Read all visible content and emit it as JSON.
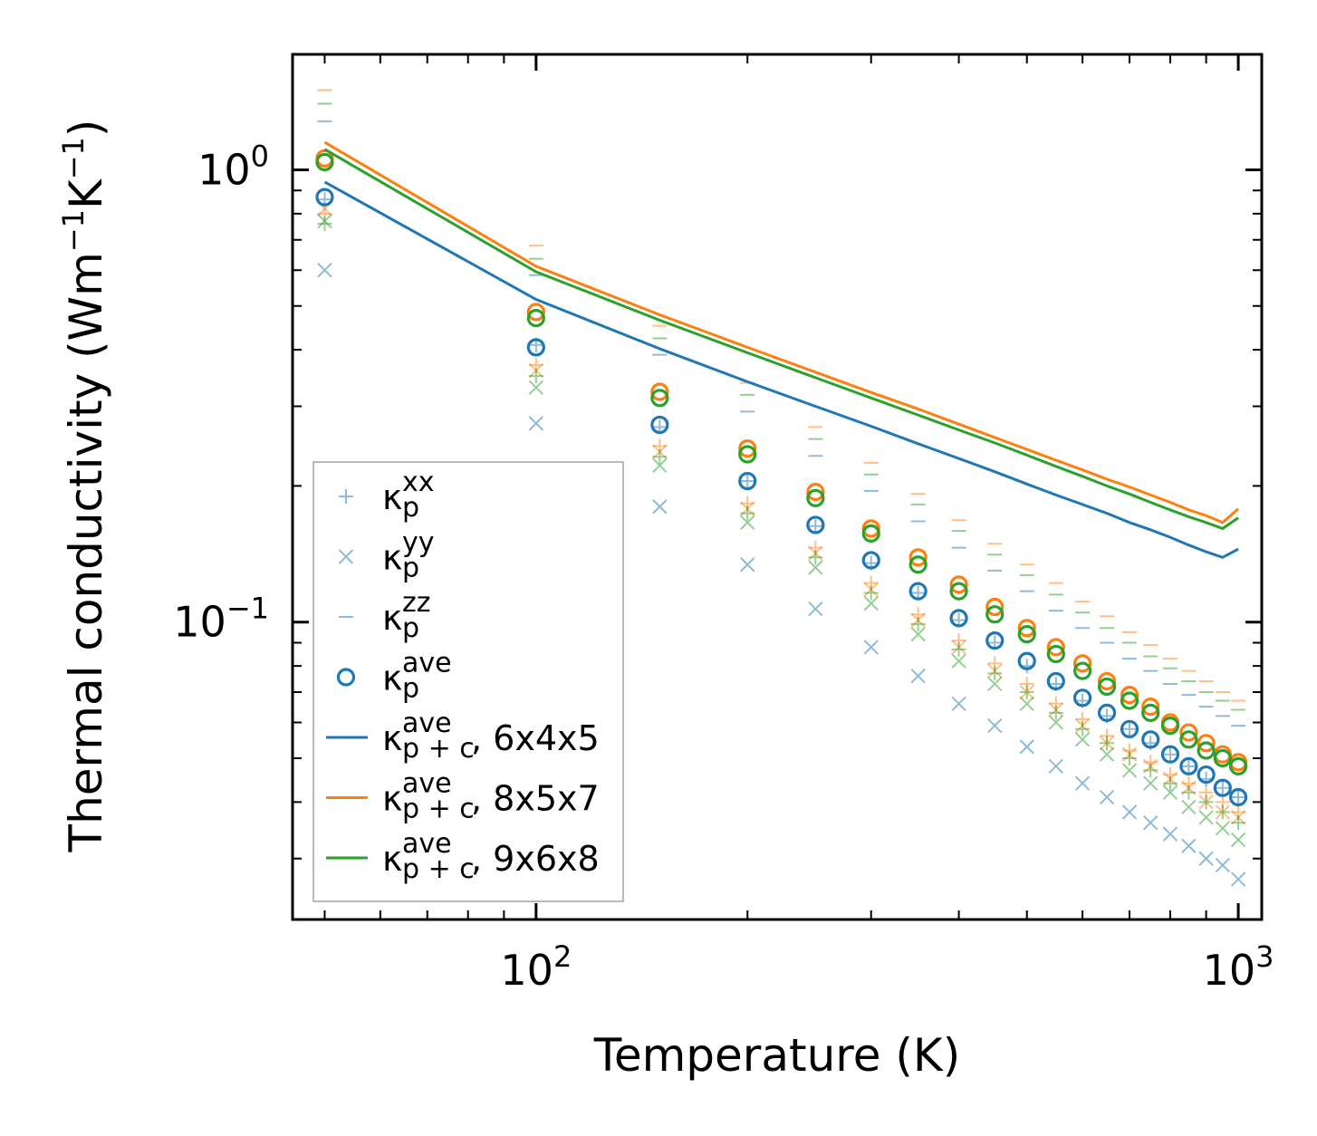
{
  "chart_data": {
    "type": "scatter",
    "xscale": "log",
    "yscale": "log",
    "xlabel": "Temperature (K)",
    "ylabel": {
      "base": "Thermal conductivity (Wm",
      "exp1": "−1",
      "mid": "K",
      "exp2": "−1",
      "end": ")"
    },
    "xlim": [
      45,
      1080
    ],
    "ylim": [
      0.022,
      1.8
    ],
    "xticks": [
      {
        "value": 100,
        "base": "10",
        "exp": "2"
      },
      {
        "value": 1000,
        "base": "10",
        "exp": "3"
      }
    ],
    "yticks": [
      {
        "value": 1,
        "base": "10",
        "exp": "0"
      },
      {
        "value": 0.1,
        "base": "10",
        "exp": "−1"
      }
    ],
    "x": [
      50,
      100,
      150,
      200,
      250,
      300,
      350,
      400,
      450,
      500,
      550,
      600,
      650,
      700,
      750,
      800,
      850,
      900,
      950,
      1000
    ],
    "colors": {
      "blue": "#1f77b4",
      "orange": "#ff7f0e",
      "green": "#2ca02c"
    },
    "markers": {
      "kxx": {
        "blue": [
          0.86,
          0.41,
          0.27,
          0.205,
          0.163,
          0.135,
          0.116,
          0.101,
          0.09,
          0.08,
          0.073,
          0.067,
          0.062,
          0.058,
          0.054,
          0.051,
          0.048,
          0.045,
          0.043,
          0.041
        ],
        "orange": [
          0.8,
          0.37,
          0.245,
          0.183,
          0.146,
          0.122,
          0.104,
          0.091,
          0.081,
          0.073,
          0.066,
          0.061,
          0.056,
          0.052,
          0.049,
          0.046,
          0.044,
          0.042,
          0.04,
          0.038
        ],
        "green": [
          0.76,
          0.35,
          0.232,
          0.174,
          0.139,
          0.116,
          0.099,
          0.087,
          0.077,
          0.07,
          0.063,
          0.058,
          0.054,
          0.05,
          0.047,
          0.044,
          0.042,
          0.04,
          0.038,
          0.036
        ]
      },
      "kyy": {
        "blue": [
          0.6,
          0.275,
          0.18,
          0.134,
          0.107,
          0.088,
          0.076,
          0.066,
          0.059,
          0.053,
          0.048,
          0.044,
          0.041,
          0.038,
          0.036,
          0.034,
          0.032,
          0.03,
          0.029,
          0.027
        ],
        "orange": [
          0.82,
          0.36,
          0.238,
          0.178,
          0.142,
          0.118,
          0.101,
          0.088,
          0.078,
          0.07,
          0.064,
          0.059,
          0.054,
          0.051,
          0.048,
          0.045,
          0.043,
          0.04,
          0.038,
          0.037
        ],
        "green": [
          0.77,
          0.33,
          0.222,
          0.166,
          0.132,
          0.11,
          0.094,
          0.082,
          0.073,
          0.066,
          0.06,
          0.055,
          0.051,
          0.047,
          0.044,
          0.042,
          0.039,
          0.037,
          0.035,
          0.033
        ]
      },
      "kzz": {
        "blue": [
          1.28,
          0.585,
          0.39,
          0.292,
          0.233,
          0.195,
          0.167,
          0.146,
          0.13,
          0.117,
          0.106,
          0.097,
          0.09,
          0.083,
          0.078,
          0.073,
          0.069,
          0.065,
          0.062,
          0.059
        ],
        "orange": [
          1.5,
          0.68,
          0.452,
          0.338,
          0.27,
          0.225,
          0.192,
          0.168,
          0.149,
          0.134,
          0.122,
          0.111,
          0.103,
          0.095,
          0.089,
          0.083,
          0.078,
          0.074,
          0.07,
          0.067
        ],
        "green": [
          1.4,
          0.636,
          0.424,
          0.318,
          0.254,
          0.212,
          0.182,
          0.159,
          0.141,
          0.127,
          0.115,
          0.105,
          0.097,
          0.09,
          0.084,
          0.079,
          0.074,
          0.07,
          0.067,
          0.064
        ]
      },
      "kave": {
        "blue": [
          0.87,
          0.405,
          0.273,
          0.205,
          0.164,
          0.137,
          0.117,
          0.102,
          0.091,
          0.082,
          0.074,
          0.068,
          0.063,
          0.058,
          0.055,
          0.051,
          0.048,
          0.046,
          0.043,
          0.041
        ],
        "orange": [
          1.06,
          0.485,
          0.323,
          0.242,
          0.194,
          0.161,
          0.139,
          0.121,
          0.108,
          0.097,
          0.088,
          0.081,
          0.074,
          0.069,
          0.065,
          0.06,
          0.057,
          0.054,
          0.051,
          0.049
        ],
        "green": [
          1.04,
          0.47,
          0.313,
          0.235,
          0.188,
          0.157,
          0.134,
          0.117,
          0.104,
          0.094,
          0.085,
          0.078,
          0.072,
          0.067,
          0.063,
          0.059,
          0.055,
          0.052,
          0.05,
          0.048
        ]
      }
    },
    "lines": [
      {
        "name": "6x4x5",
        "color": "blue",
        "x": [
          50,
          100,
          150,
          200,
          250,
          300,
          350,
          400,
          450,
          500,
          550,
          600,
          650,
          700,
          750,
          800,
          850,
          900,
          950,
          1000
        ],
        "values": [
          0.94,
          0.517,
          0.402,
          0.34,
          0.3,
          0.271,
          0.248,
          0.23,
          0.215,
          0.202,
          0.191,
          0.182,
          0.174,
          0.166,
          0.16,
          0.154,
          0.148,
          0.143,
          0.139,
          0.145
        ]
      },
      {
        "name": "8x5x7",
        "color": "orange",
        "x": [
          50,
          100,
          150,
          200,
          250,
          300,
          350,
          400,
          450,
          500,
          550,
          600,
          650,
          700,
          750,
          800,
          850,
          900,
          950,
          1000
        ],
        "values": [
          1.15,
          0.612,
          0.478,
          0.405,
          0.357,
          0.322,
          0.296,
          0.274,
          0.256,
          0.241,
          0.228,
          0.217,
          0.207,
          0.199,
          0.191,
          0.184,
          0.177,
          0.172,
          0.166,
          0.178
        ]
      },
      {
        "name": "9x6x8",
        "color": "green",
        "x": [
          50,
          100,
          150,
          200,
          250,
          300,
          350,
          400,
          450,
          500,
          550,
          600,
          650,
          700,
          750,
          800,
          850,
          900,
          950,
          1000
        ],
        "values": [
          1.11,
          0.595,
          0.465,
          0.394,
          0.347,
          0.313,
          0.287,
          0.266,
          0.249,
          0.234,
          0.221,
          0.21,
          0.2,
          0.192,
          0.184,
          0.177,
          0.171,
          0.166,
          0.161,
          0.17
        ]
      }
    ],
    "legend": {
      "placement": "lower-left",
      "entries": [
        {
          "marker": "plus",
          "color": "blue",
          "sym": "κ",
          "sub": "p",
          "sup": "xx",
          "suffix": ""
        },
        {
          "marker": "x",
          "color": "blue",
          "sym": "κ",
          "sub": "p",
          "sup": "yy",
          "suffix": ""
        },
        {
          "marker": "dash",
          "color": "blue",
          "sym": "κ",
          "sub": "p",
          "sup": "zz",
          "suffix": ""
        },
        {
          "marker": "circle",
          "color": "blue",
          "sym": "κ",
          "sub": "p",
          "sup": "ave",
          "suffix": ""
        },
        {
          "marker": "line",
          "color": "blue",
          "sym": "κ",
          "sub": "p + c",
          "sup": "ave",
          "suffix": ", 6x4x5"
        },
        {
          "marker": "line",
          "color": "orange",
          "sym": "κ",
          "sub": "p + c",
          "sup": "ave",
          "suffix": ", 8x5x7"
        },
        {
          "marker": "line",
          "color": "green",
          "sym": "κ",
          "sub": "p + c",
          "sup": "ave",
          "suffix": ", 9x6x8"
        }
      ]
    }
  }
}
